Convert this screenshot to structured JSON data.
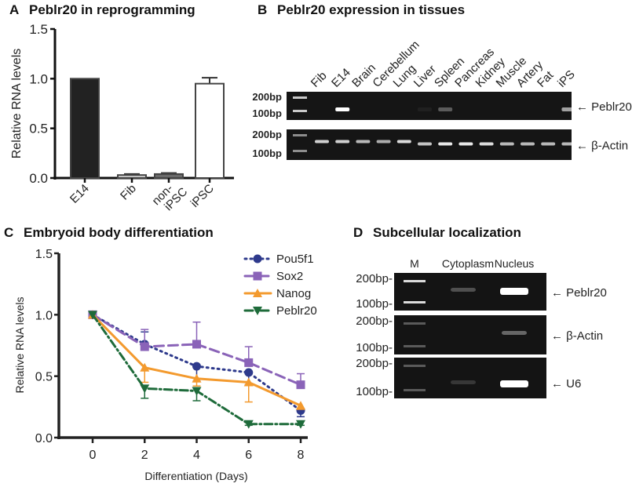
{
  "chart_data": [
    {
      "panel": "A",
      "type": "bar",
      "title": "Peblr20 in reprogramming",
      "ylabel": "Relative RNA levels",
      "ylim": [
        0,
        1.5
      ],
      "yticks": [
        "0.0",
        "0.5",
        "1.0",
        "1.5"
      ],
      "categories": [
        "E14",
        "Fib",
        "non-iPSC",
        "iPSC"
      ],
      "category_lines": [
        [
          "E14"
        ],
        [
          "Fib"
        ],
        [
          "non-",
          "iPSC"
        ],
        [
          "iPSC"
        ]
      ],
      "values": [
        1.0,
        0.03,
        0.04,
        0.95
      ],
      "errors": [
        0,
        0.01,
        0.01,
        0.06
      ],
      "colors": [
        "#222222",
        "#cfcfcf",
        "#6a6a6a",
        "#ffffff"
      ]
    },
    {
      "panel": "C",
      "type": "line",
      "title": "Embryoid body differentiation",
      "xlabel": "Differentiation (Days)",
      "ylabel": "Relative RNA levels",
      "x": [
        0,
        2,
        4,
        6,
        8
      ],
      "xticks": [
        "0",
        "2",
        "4",
        "6",
        "8"
      ],
      "ylim": [
        0,
        1.5
      ],
      "yticks": [
        "0.0",
        "0.5",
        "1.0",
        "1.5"
      ],
      "legend": "top-right",
      "series": [
        {
          "name": "Pou5f1",
          "values": [
            1,
            0.76,
            0.58,
            0.53,
            0.22
          ],
          "errors": [
            0,
            0.1,
            0.12,
            0.1,
            0.05
          ],
          "color": "#2e3a8c",
          "marker": "circle",
          "dash": "2 5"
        },
        {
          "name": "Sox2",
          "values": [
            1,
            0.74,
            0.76,
            0.61,
            0.43
          ],
          "errors": [
            0,
            0.14,
            0.18,
            0.13,
            0.09
          ],
          "color": "#8a63b8",
          "marker": "square",
          "dash": "12 6"
        },
        {
          "name": "Nanog",
          "values": [
            1,
            0.57,
            0.48,
            0.45,
            0.26
          ],
          "errors": [
            0,
            0.12,
            0.06,
            0.16,
            0.03
          ],
          "color": "#f39a2e",
          "marker": "triangle",
          "dash": ""
        },
        {
          "name": "Peblr20",
          "values": [
            1,
            0.4,
            0.38,
            0.11,
            0.11
          ],
          "errors": [
            0,
            0.08,
            0.08,
            0.01,
            0.01
          ],
          "color": "#1e6b3a",
          "marker": "triangle-down",
          "dash": "10 4 2 4"
        }
      ]
    }
  ],
  "panelB": {
    "letter": "B",
    "title": "Peblr20 expression in tissues",
    "lanes": [
      "Fib",
      "E14",
      "Brain",
      "Cerebellum",
      "Lung",
      "Liver",
      "Spleen",
      "Pancreas",
      "Kidney",
      "Muscle",
      "Artery",
      "Fat",
      "iPS"
    ],
    "markers": [
      "200bp",
      "100bp"
    ],
    "gel_labels": [
      "Peblr20",
      "β-Actin"
    ],
    "peblr20_intensity": [
      0,
      1,
      0,
      0,
      0,
      0.05,
      0.3,
      0,
      0,
      0,
      0,
      0,
      0.6
    ],
    "actin_intensity": [
      0.8,
      0.8,
      0.7,
      0.65,
      0.85,
      0.75,
      0.9,
      0.9,
      0.85,
      0.7,
      0.7,
      0.7,
      0.7
    ]
  },
  "panelA": {
    "letter": "A"
  },
  "panelC": {
    "letter": "C"
  },
  "panelD": {
    "letter": "D",
    "title": "Subcellular localization",
    "lanes": [
      "M",
      "Cytoplasm",
      "Nucleus"
    ],
    "markers": [
      "200bp-",
      "100bp-"
    ],
    "gel_labels": [
      "Peblr20",
      "β-Actin",
      "U6"
    ],
    "intensity": [
      [
        0,
        0.25,
        1
      ],
      [
        1,
        0,
        0.35
      ],
      [
        0,
        0.15,
        1
      ]
    ]
  }
}
